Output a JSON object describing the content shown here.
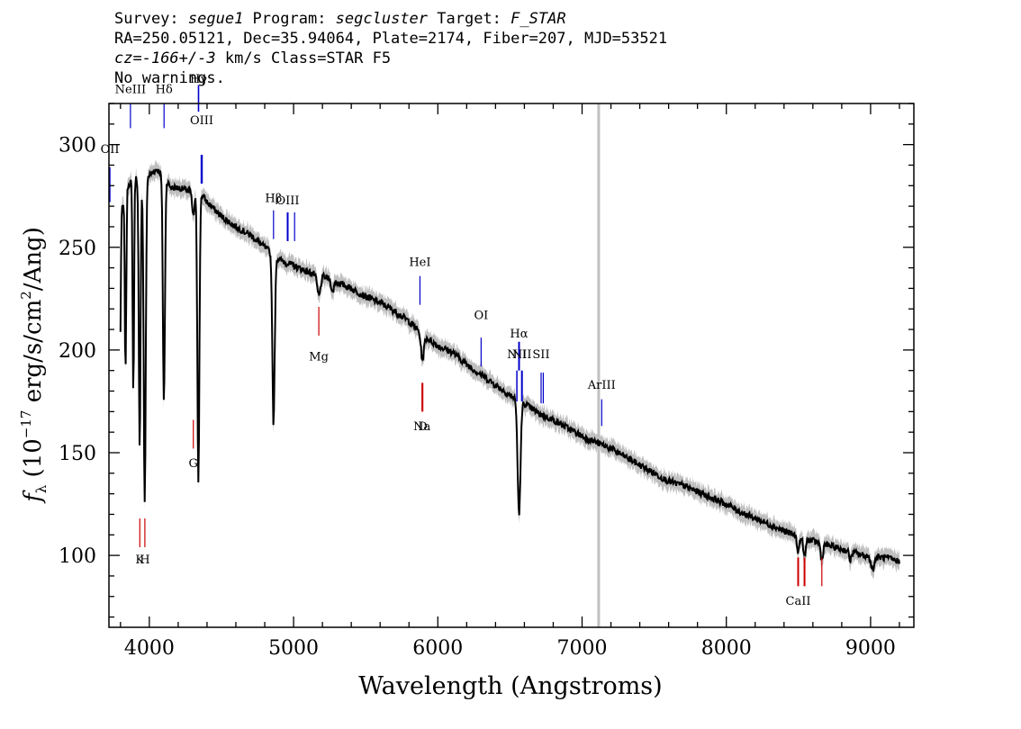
{
  "header": {
    "line1": {
      "survey_label": "Survey: ",
      "survey": "segue1",
      "program_label": " Program: ",
      "program": "segcluster",
      "target_label": " Target: ",
      "target": "F_STAR"
    },
    "line2": "RA=250.05121, Dec=35.94064, Plate=2174, Fiber=207, MJD=53521",
    "line3": {
      "cz_label": "cz=",
      "cz": "-166+/-3",
      "rest": " km/s Class=STAR F5"
    },
    "line4": "No warnings."
  },
  "colors": {
    "flux": "#000000",
    "error_band": "#bfbfbf",
    "emission_line": "#0000cc",
    "absorption_line": "#cc0000",
    "marker": "#c0c0c0"
  },
  "chart_data": {
    "type": "line",
    "xlabel": "Wavelength (Angstroms)",
    "ylabel": "f_λ (10^-17 erg/s/cm^2/Ang)",
    "xlim": [
      3720,
      9300
    ],
    "ylim": [
      65,
      320
    ],
    "xticks": [
      4000,
      5000,
      6000,
      7000,
      8000,
      9000
    ],
    "yticks": [
      100,
      150,
      200,
      250,
      300
    ],
    "vertical_marker_x": 7115,
    "continuum": [
      [
        3800,
        265
      ],
      [
        3850,
        280
      ],
      [
        3900,
        284
      ],
      [
        3950,
        282
      ],
      [
        4000,
        285
      ],
      [
        4050,
        288
      ],
      [
        4100,
        285
      ],
      [
        4150,
        279
      ],
      [
        4200,
        279
      ],
      [
        4250,
        278
      ],
      [
        4300,
        277
      ],
      [
        4350,
        277
      ],
      [
        4400,
        272
      ],
      [
        4500,
        265
      ],
      [
        4600,
        260
      ],
      [
        4700,
        256
      ],
      [
        4800,
        250
      ],
      [
        4900,
        244
      ],
      [
        5000,
        241
      ],
      [
        5100,
        238
      ],
      [
        5200,
        236
      ],
      [
        5300,
        233
      ],
      [
        5400,
        230
      ],
      [
        5500,
        226
      ],
      [
        5600,
        223
      ],
      [
        5700,
        219
      ],
      [
        5800,
        214
      ],
      [
        5900,
        207
      ],
      [
        6000,
        202
      ],
      [
        6100,
        199
      ],
      [
        6200,
        193
      ],
      [
        6300,
        188
      ],
      [
        6400,
        183
      ],
      [
        6500,
        178
      ],
      [
        6600,
        174
      ],
      [
        6700,
        169
      ],
      [
        6800,
        166
      ],
      [
        6900,
        162
      ],
      [
        7000,
        158
      ],
      [
        7100,
        155
      ],
      [
        7200,
        152
      ],
      [
        7300,
        148
      ],
      [
        7400,
        144
      ],
      [
        7500,
        140
      ],
      [
        7600,
        136
      ],
      [
        7700,
        134
      ],
      [
        7800,
        131
      ],
      [
        7900,
        128
      ],
      [
        8000,
        125
      ],
      [
        8100,
        121
      ],
      [
        8200,
        118
      ],
      [
        8300,
        115
      ],
      [
        8400,
        112
      ],
      [
        8500,
        109
      ],
      [
        8600,
        107
      ],
      [
        8700,
        105
      ],
      [
        8800,
        103
      ],
      [
        8900,
        101
      ],
      [
        9000,
        99
      ],
      [
        9100,
        99
      ],
      [
        9200,
        97
      ]
    ],
    "absorption_features": [
      {
        "x": 3798,
        "depth": 64,
        "width": 4
      },
      {
        "x": 3835,
        "depth": 86,
        "width": 5
      },
      {
        "x": 3889,
        "depth": 104,
        "width": 5
      },
      {
        "x": 3933,
        "depth": 132,
        "width": 6
      },
      {
        "x": 3968,
        "depth": 158,
        "width": 7
      },
      {
        "x": 4101,
        "depth": 110,
        "width": 7
      },
      {
        "x": 4305,
        "depth": 12,
        "width": 8
      },
      {
        "x": 4340,
        "depth": 140,
        "width": 7
      },
      {
        "x": 4861,
        "depth": 82,
        "width": 8
      },
      {
        "x": 5175,
        "depth": 10,
        "width": 12
      },
      {
        "x": 5270,
        "depth": 6,
        "width": 8
      },
      {
        "x": 5893,
        "depth": 12,
        "width": 10
      },
      {
        "x": 6563,
        "depth": 55,
        "width": 10
      },
      {
        "x": 8498,
        "depth": 7,
        "width": 8
      },
      {
        "x": 8542,
        "depth": 9,
        "width": 8
      },
      {
        "x": 8662,
        "depth": 8,
        "width": 8
      },
      {
        "x": 8860,
        "depth": 4,
        "width": 8
      },
      {
        "x": 9015,
        "depth": 6,
        "width": 10
      }
    ],
    "emission_lines": [
      {
        "label": "OII",
        "x": 3727,
        "y0": 272,
        "y1": 289,
        "label_y": 296,
        "lw": 1.2
      },
      {
        "label": "NeIII",
        "x": 3869,
        "y0": 308,
        "y1": 320,
        "label_y": 325,
        "lw": 1.2
      },
      {
        "label": "Hδ",
        "x": 4102,
        "y0": 308,
        "y1": 320,
        "label_y": 325,
        "lw": 1.2
      },
      {
        "label": "Hγ",
        "x": 4341,
        "y0": 316,
        "y1": 329,
        "label_y": 330,
        "lw": 1.6
      },
      {
        "label": "OIII",
        "x": 4363,
        "y0": 281,
        "y1": 295,
        "label_y": 310,
        "lw": 2.4
      },
      {
        "label": "Hβ",
        "x": 4861,
        "y0": 254,
        "y1": 268,
        "label_y": 272,
        "lw": 1.2
      },
      {
        "label": "OIII",
        "x": 4959,
        "y0": 253,
        "y1": 267,
        "label_y": 271,
        "lw": 2
      },
      {
        "label": "",
        "x": 5007,
        "y0": 253,
        "y1": 267,
        "label_y": 271,
        "lw": 1.2
      },
      {
        "label": "HeI",
        "x": 5876,
        "y0": 222,
        "y1": 236,
        "label_y": 241,
        "lw": 1.2
      },
      {
        "label": "OI",
        "x": 6300,
        "y0": 192,
        "y1": 206,
        "label_y": 215,
        "lw": 1.2
      },
      {
        "label": "NII",
        "x": 6548,
        "y0": 175,
        "y1": 190,
        "label_y": 196,
        "lw": 1.5
      },
      {
        "label": "Hα",
        "x": 6563,
        "y0": 190,
        "y1": 204,
        "label_y": 206,
        "lw": 2
      },
      {
        "label": "NII",
        "x": 6583,
        "y0": 175,
        "y1": 190,
        "label_y": 196,
        "lw": 2
      },
      {
        "label": "SII",
        "x": 6716,
        "y0": 174,
        "y1": 189,
        "label_y": 196,
        "lw": 1.2
      },
      {
        "label": "",
        "x": 6731,
        "y0": 174,
        "y1": 189,
        "label_y": 196,
        "lw": 1.2
      },
      {
        "label": "ArIII",
        "x": 7136,
        "y0": 163,
        "y1": 176,
        "label_y": 181,
        "lw": 1.2
      }
    ],
    "absorption_lines": [
      {
        "label": "K",
        "x": 3934,
        "y0": 104,
        "y1": 118,
        "label_y": 96,
        "lw": 1.2
      },
      {
        "label": "H",
        "x": 3969,
        "y0": 104,
        "y1": 118,
        "label_y": 96,
        "lw": 1.2
      },
      {
        "label": "G",
        "x": 4305,
        "y0": 152,
        "y1": 166,
        "label_y": 143,
        "lw": 1.2
      },
      {
        "label": "Mg",
        "x": 5175,
        "y0": 207,
        "y1": 221,
        "label_y": 195,
        "lw": 1.2
      },
      {
        "label": "Na",
        "x": 5890,
        "y0": 170,
        "y1": 184,
        "label_y": 161,
        "lw": 1.2
      },
      {
        "label": "D",
        "x": 5896,
        "y0": 170,
        "y1": 184,
        "label_y": 161,
        "lw": 1.2
      },
      {
        "label": "CaII",
        "x": 8498,
        "y0": 85,
        "y1": 99,
        "label_y": 76,
        "lw": 2
      },
      {
        "label": "",
        "x": 8542,
        "y0": 85,
        "y1": 99,
        "label_y": 76,
        "lw": 2
      },
      {
        "label": "",
        "x": 8662,
        "y0": 85,
        "y1": 99,
        "label_y": 76,
        "lw": 1.2
      }
    ]
  }
}
